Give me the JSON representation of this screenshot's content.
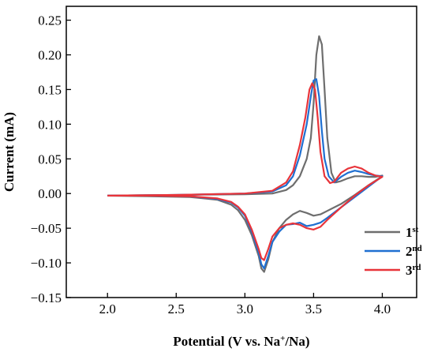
{
  "chart_data": {
    "type": "line",
    "xlabel": "Potential (V vs. Na+/Na)",
    "xlabel_parts": {
      "before": "Potential (V vs. Na",
      "sup": "+",
      "after": "/Na)"
    },
    "ylabel": "Current (mA)",
    "xlim": [
      1.7,
      4.25
    ],
    "ylim": [
      -0.15,
      0.27
    ],
    "x_ticks": [
      2.0,
      2.5,
      3.0,
      3.5,
      4.0
    ],
    "x_tick_labels": [
      "2.0",
      "2.5",
      "3.0",
      "3.5",
      "4.0"
    ],
    "y_ticks": [
      -0.15,
      -0.1,
      -0.05,
      0.0,
      0.05,
      0.1,
      0.15,
      0.2,
      0.25
    ],
    "y_tick_labels": [
      "−0.15",
      "−0.10",
      "−0.05",
      "0.00",
      "0.05",
      "0.10",
      "0.15",
      "0.20",
      "0.25"
    ],
    "grid": false,
    "legend_position": "bottom-right",
    "series": [
      {
        "name": "1st",
        "label_main": "1",
        "label_sup": "st",
        "color": "#6e6e6e",
        "anodic": [
          [
            2.0,
            -0.003
          ],
          [
            2.5,
            -0.002
          ],
          [
            3.0,
            -0.001
          ],
          [
            3.2,
            0.0
          ],
          [
            3.3,
            0.005
          ],
          [
            3.35,
            0.012
          ],
          [
            3.4,
            0.025
          ],
          [
            3.45,
            0.05
          ],
          [
            3.48,
            0.08
          ],
          [
            3.5,
            0.13
          ],
          [
            3.52,
            0.2
          ],
          [
            3.54,
            0.227
          ],
          [
            3.56,
            0.215
          ],
          [
            3.58,
            0.15
          ],
          [
            3.6,
            0.08
          ],
          [
            3.63,
            0.03
          ],
          [
            3.66,
            0.016
          ],
          [
            3.7,
            0.018
          ],
          [
            3.75,
            0.022
          ],
          [
            3.8,
            0.025
          ],
          [
            3.85,
            0.025
          ],
          [
            3.9,
            0.024
          ],
          [
            3.95,
            0.024
          ],
          [
            4.0,
            0.026
          ]
        ],
        "cathodic": [
          [
            4.0,
            0.025
          ],
          [
            3.9,
            0.012
          ],
          [
            3.8,
            -0.002
          ],
          [
            3.7,
            -0.015
          ],
          [
            3.6,
            -0.025
          ],
          [
            3.55,
            -0.03
          ],
          [
            3.5,
            -0.032
          ],
          [
            3.45,
            -0.028
          ],
          [
            3.4,
            -0.025
          ],
          [
            3.35,
            -0.03
          ],
          [
            3.3,
            -0.038
          ],
          [
            3.25,
            -0.05
          ],
          [
            3.2,
            -0.07
          ],
          [
            3.17,
            -0.095
          ],
          [
            3.14,
            -0.113
          ],
          [
            3.12,
            -0.108
          ],
          [
            3.1,
            -0.09
          ],
          [
            3.05,
            -0.06
          ],
          [
            3.0,
            -0.038
          ],
          [
            2.95,
            -0.024
          ],
          [
            2.9,
            -0.016
          ],
          [
            2.8,
            -0.009
          ],
          [
            2.6,
            -0.005
          ],
          [
            2.3,
            -0.004
          ],
          [
            2.0,
            -0.003
          ]
        ]
      },
      {
        "name": "2nd",
        "label_main": "2",
        "label_sup": "nd",
        "color": "#1f6fd1",
        "anodic": [
          [
            2.0,
            -0.003
          ],
          [
            2.5,
            -0.002
          ],
          [
            3.0,
            0.0
          ],
          [
            3.2,
            0.003
          ],
          [
            3.3,
            0.012
          ],
          [
            3.35,
            0.025
          ],
          [
            3.4,
            0.055
          ],
          [
            3.45,
            0.1
          ],
          [
            3.48,
            0.14
          ],
          [
            3.5,
            0.163
          ],
          [
            3.52,
            0.165
          ],
          [
            3.54,
            0.14
          ],
          [
            3.56,
            0.09
          ],
          [
            3.58,
            0.05
          ],
          [
            3.61,
            0.025
          ],
          [
            3.65,
            0.016
          ],
          [
            3.7,
            0.024
          ],
          [
            3.75,
            0.03
          ],
          [
            3.8,
            0.033
          ],
          [
            3.85,
            0.031
          ],
          [
            3.9,
            0.028
          ],
          [
            3.95,
            0.026
          ],
          [
            4.0,
            0.025
          ]
        ],
        "cathodic": [
          [
            4.0,
            0.025
          ],
          [
            3.9,
            0.01
          ],
          [
            3.8,
            -0.005
          ],
          [
            3.7,
            -0.02
          ],
          [
            3.6,
            -0.035
          ],
          [
            3.55,
            -0.042
          ],
          [
            3.5,
            -0.045
          ],
          [
            3.45,
            -0.047
          ],
          [
            3.4,
            -0.042
          ],
          [
            3.35,
            -0.044
          ],
          [
            3.3,
            -0.045
          ],
          [
            3.25,
            -0.055
          ],
          [
            3.2,
            -0.07
          ],
          [
            3.17,
            -0.09
          ],
          [
            3.14,
            -0.108
          ],
          [
            3.12,
            -0.102
          ],
          [
            3.1,
            -0.085
          ],
          [
            3.05,
            -0.055
          ],
          [
            3.0,
            -0.032
          ],
          [
            2.95,
            -0.02
          ],
          [
            2.9,
            -0.013
          ],
          [
            2.8,
            -0.008
          ],
          [
            2.6,
            -0.004
          ],
          [
            2.3,
            -0.003
          ],
          [
            2.0,
            -0.003
          ]
        ]
      },
      {
        "name": "3rd",
        "label_main": "3",
        "label_sup": "rd",
        "color": "#e8343a",
        "anodic": [
          [
            2.0,
            -0.003
          ],
          [
            2.5,
            -0.002
          ],
          [
            3.0,
            0.0
          ],
          [
            3.2,
            0.004
          ],
          [
            3.3,
            0.016
          ],
          [
            3.35,
            0.032
          ],
          [
            3.4,
            0.07
          ],
          [
            3.44,
            0.11
          ],
          [
            3.47,
            0.15
          ],
          [
            3.49,
            0.159
          ],
          [
            3.51,
            0.15
          ],
          [
            3.53,
            0.11
          ],
          [
            3.55,
            0.06
          ],
          [
            3.58,
            0.025
          ],
          [
            3.62,
            0.015
          ],
          [
            3.65,
            0.017
          ],
          [
            3.7,
            0.03
          ],
          [
            3.75,
            0.036
          ],
          [
            3.8,
            0.039
          ],
          [
            3.85,
            0.036
          ],
          [
            3.9,
            0.03
          ],
          [
            3.95,
            0.026
          ],
          [
            4.0,
            0.024
          ]
        ],
        "cathodic": [
          [
            4.0,
            0.024
          ],
          [
            3.9,
            0.012
          ],
          [
            3.8,
            -0.003
          ],
          [
            3.7,
            -0.02
          ],
          [
            3.6,
            -0.038
          ],
          [
            3.55,
            -0.048
          ],
          [
            3.5,
            -0.052
          ],
          [
            3.45,
            -0.05
          ],
          [
            3.4,
            -0.045
          ],
          [
            3.35,
            -0.043
          ],
          [
            3.3,
            -0.045
          ],
          [
            3.25,
            -0.05
          ],
          [
            3.2,
            -0.062
          ],
          [
            3.17,
            -0.08
          ],
          [
            3.14,
            -0.096
          ],
          [
            3.12,
            -0.093
          ],
          [
            3.1,
            -0.08
          ],
          [
            3.05,
            -0.052
          ],
          [
            3.0,
            -0.03
          ],
          [
            2.95,
            -0.019
          ],
          [
            2.9,
            -0.012
          ],
          [
            2.8,
            -0.007
          ],
          [
            2.6,
            -0.004
          ],
          [
            2.3,
            -0.003
          ],
          [
            2.0,
            -0.003
          ]
        ]
      }
    ]
  }
}
